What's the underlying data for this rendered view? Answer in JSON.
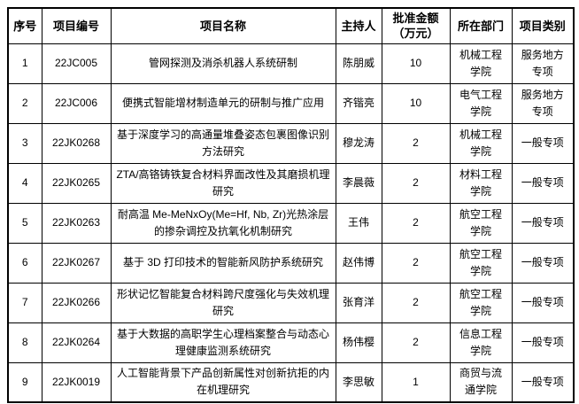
{
  "page": {
    "background": "#ffffff",
    "border_color": "#000000",
    "text_color": "#000000"
  },
  "table": {
    "headers": [
      {
        "id": "no",
        "label": "序号"
      },
      {
        "id": "code",
        "label": "项目编号"
      },
      {
        "id": "name",
        "label": "项目名称"
      },
      {
        "id": "leader",
        "label": "主持人"
      },
      {
        "id": "amount",
        "label": "批准金额\n（万元）"
      },
      {
        "id": "dept",
        "label": "所在部门"
      },
      {
        "id": "category",
        "label": "项目类别"
      }
    ],
    "rows": [
      {
        "no": "1",
        "code": "22JC005",
        "name": "管网探测及消杀机器人系统研制",
        "leader": "陈朋威",
        "amount": "10",
        "dept": "机械工程学院",
        "category": "服务地方专项"
      },
      {
        "no": "2",
        "code": "22JC006",
        "name": "便携式智能增材制造单元的研制与推广应用",
        "leader": "齐锴亮",
        "amount": "10",
        "dept": "电气工程学院",
        "category": "服务地方专项"
      },
      {
        "no": "3",
        "code": "22JK0268",
        "name": "基于深度学习的高通量堆叠姿态包裹图像识别方法研究",
        "leader": "穆龙涛",
        "amount": "2",
        "dept": "机械工程学院",
        "category": "一般专项"
      },
      {
        "no": "4",
        "code": "22JK0265",
        "name": "ZTA/高铬铸铁复合材料界面改性及其磨损机理研究",
        "leader": "李晨薇",
        "amount": "2",
        "dept": "材料工程学院",
        "category": "一般专项"
      },
      {
        "no": "5",
        "code": "22JK0263",
        "name": "耐高温 Me-MeNxOy(Me=Hf, Nb, Zr)光热涂层的掺杂调控及抗氧化机制研究",
        "leader": "王伟",
        "amount": "2",
        "dept": "航空工程学院",
        "category": "一般专项"
      },
      {
        "no": "6",
        "code": "22JK0267",
        "name": "基于 3D 打印技术的智能新风防护系统研究",
        "leader": "赵伟博",
        "amount": "2",
        "dept": "航空工程学院",
        "category": "一般专项"
      },
      {
        "no": "7",
        "code": "22JK0266",
        "name": "形状记忆智能复合材料跨尺度强化与失效机理研究",
        "leader": "张育洋",
        "amount": "2",
        "dept": "航空工程学院",
        "category": "一般专项"
      },
      {
        "no": "8",
        "code": "22JK0264",
        "name": "基于大数据的高职学生心理档案整合与动态心理健康监测系统研究",
        "leader": "杨伟樱",
        "amount": "2",
        "dept": "信息工程学院",
        "category": "一般专项"
      },
      {
        "no": "9",
        "code": "22JK0019",
        "name": "人工智能背景下产品创新属性对创新抗拒的内在机理研究",
        "leader": "李思敏",
        "amount": "1",
        "dept": "商贸与流通学院",
        "category": "一般专项"
      }
    ]
  }
}
